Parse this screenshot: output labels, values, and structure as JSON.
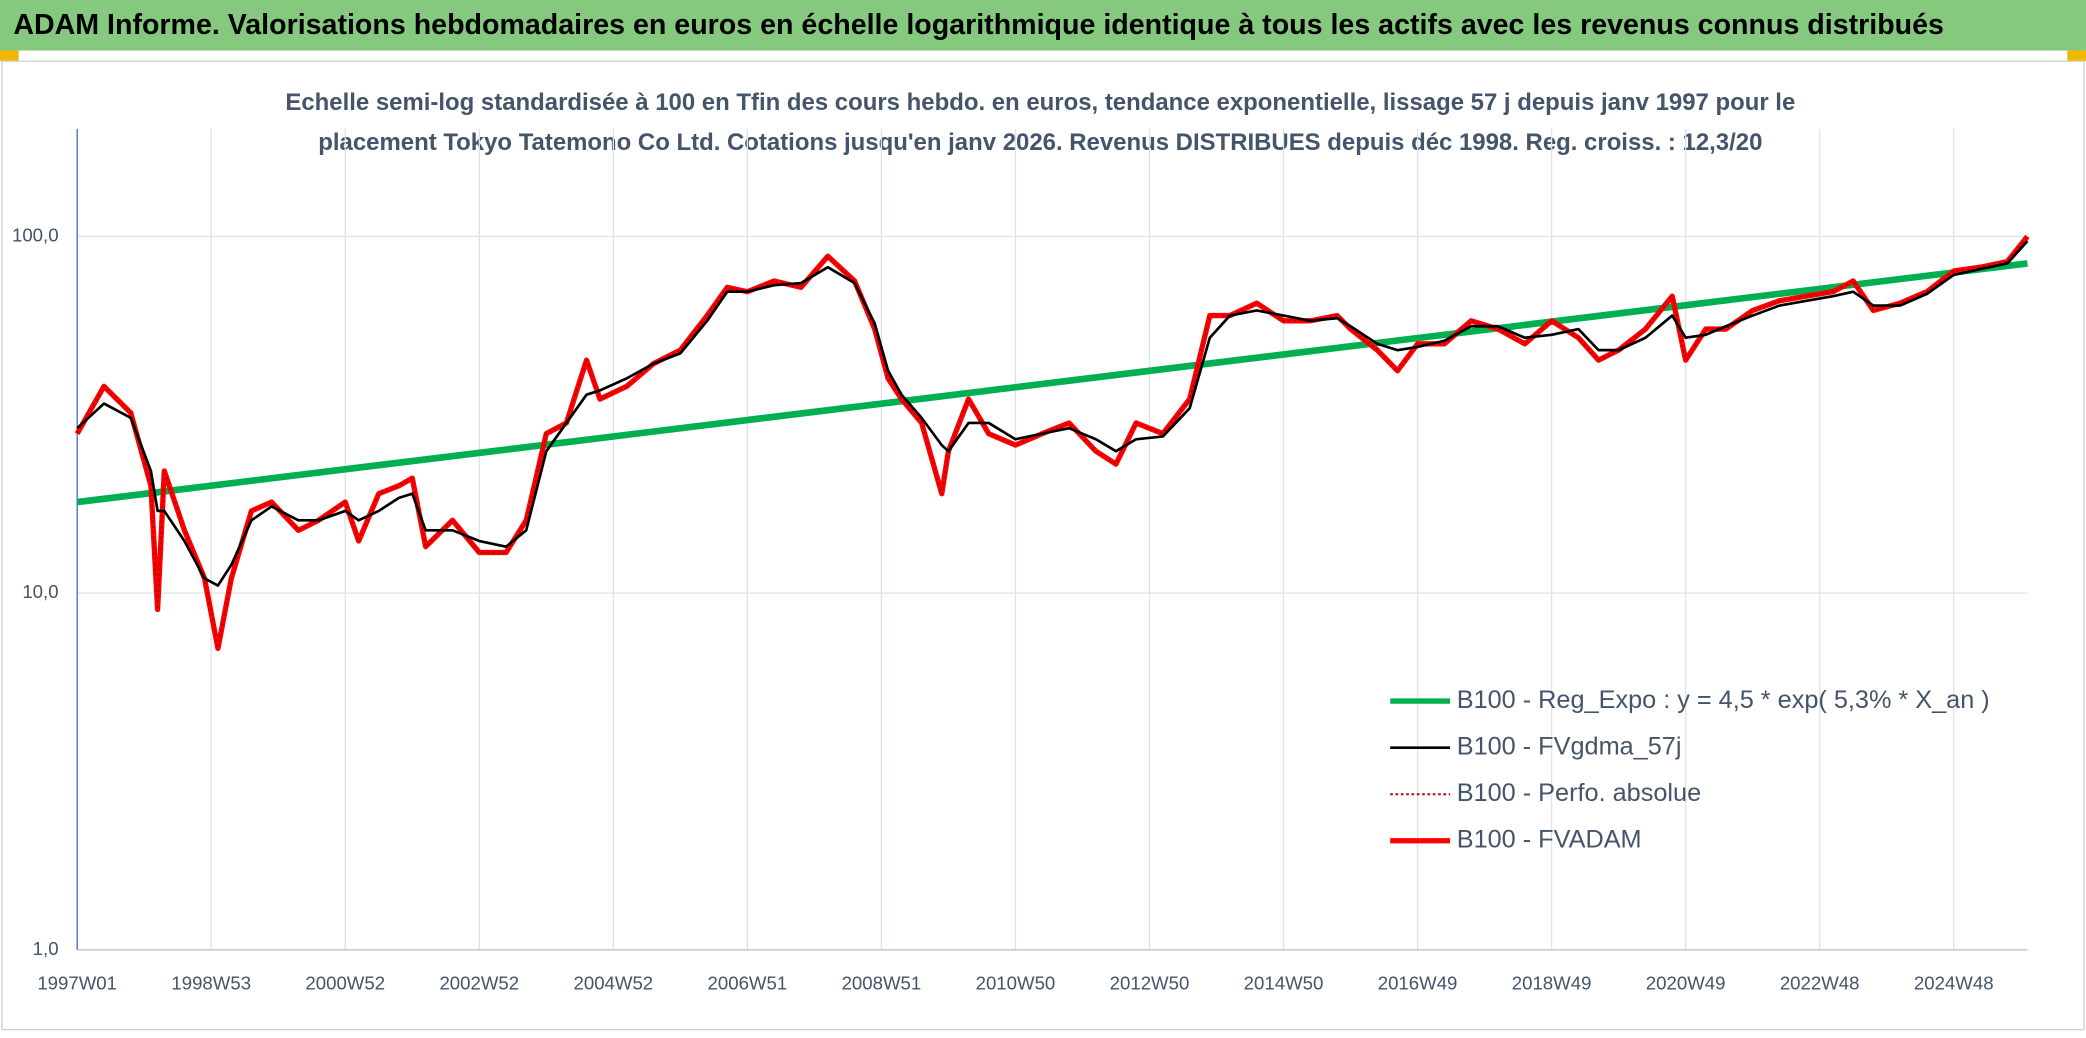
{
  "chart_data": {
    "type": "line",
    "title": "ADAM Informe. Valorisations hebdomadaires en euros en échelle logarithmique identique à tous les actifs avec les revenus connus distribués",
    "subtitle": [
      "Echelle semi-log standardisée à 100 en Tfin des cours hebdo. en euros, tendance exponentielle, lissage 57 j depuis janv 1997 pour le",
      "placement Tokyo Tatemono Co Ltd. Cotations jusqu'en janv 2026. Revenus DISTRIBUES depuis déc 1998. Reg. croiss. : 12,3/20"
    ],
    "log_y": true,
    "grid": true,
    "legend": "lower right",
    "xlim": [
      1997,
      2026.1
    ],
    "ylim": [
      1,
      200
    ],
    "xticks": [
      {
        "value": 1997,
        "label": "1997W01"
      },
      {
        "value": 1999,
        "label": "1998W53"
      },
      {
        "value": 2001,
        "label": "2000W52"
      },
      {
        "value": 2003,
        "label": "2002W52"
      },
      {
        "value": 2005,
        "label": "2004W52"
      },
      {
        "value": 2007,
        "label": "2006W51"
      },
      {
        "value": 2009,
        "label": "2008W51"
      },
      {
        "value": 2011,
        "label": "2010W50"
      },
      {
        "value": 2013,
        "label": "2012W50"
      },
      {
        "value": 2015,
        "label": "2014W50"
      },
      {
        "value": 2017,
        "label": "2016W49"
      },
      {
        "value": 2019,
        "label": "2018W49"
      },
      {
        "value": 2021,
        "label": "2020W49"
      },
      {
        "value": 2023,
        "label": "2022W48"
      },
      {
        "value": 2025,
        "label": "2024W48"
      }
    ],
    "yticks": [
      {
        "value": 1,
        "label": "1,0"
      },
      {
        "value": 10,
        "label": "10,0"
      },
      {
        "value": 100,
        "label": "100,0"
      }
    ],
    "x": [
      1997.0,
      1997.4,
      1997.8,
      1998.1,
      1998.2,
      1998.3,
      1998.6,
      1998.9,
      1999.1,
      1999.3,
      1999.6,
      1999.9,
      2000.3,
      2000.6,
      2001.0,
      2001.2,
      2001.5,
      2001.8,
      2002.0,
      2002.2,
      2002.6,
      2003.0,
      2003.4,
      2003.7,
      2004.0,
      2004.3,
      2004.6,
      2004.8,
      2005.2,
      2005.6,
      2006.0,
      2006.4,
      2006.7,
      2007.0,
      2007.4,
      2007.8,
      2008.2,
      2008.6,
      2008.9,
      2009.1,
      2009.3,
      2009.6,
      2009.9,
      2010.0,
      2010.3,
      2010.6,
      2011.0,
      2011.4,
      2011.8,
      2012.2,
      2012.5,
      2012.8,
      2013.2,
      2013.6,
      2013.9,
      2014.2,
      2014.6,
      2015.0,
      2015.4,
      2015.8,
      2016.0,
      2016.4,
      2016.7,
      2017.0,
      2017.4,
      2017.8,
      2018.2,
      2018.6,
      2019.0,
      2019.4,
      2019.7,
      2020.0,
      2020.4,
      2020.8,
      2021.0,
      2021.3,
      2021.6,
      2022.0,
      2022.4,
      2022.8,
      2023.2,
      2023.5,
      2023.8,
      2024.2,
      2024.6,
      2025.0,
      2025.4,
      2025.8,
      2026.1
    ],
    "series": [
      {
        "name": "B100 - Reg_Expo : y = 4,5 * exp( 5,3% *  X_an )",
        "color": "#00b050",
        "width": 5,
        "style": "solid",
        "x": [
          1997.0,
          2026.1
        ],
        "values": [
          18,
          84
        ]
      },
      {
        "name": "B100 - FVgdma_57j",
        "color": "#000000",
        "width": 2,
        "style": "solid",
        "values": [
          29,
          34,
          31,
          22,
          17,
          17,
          14,
          11,
          10.5,
          12,
          16,
          17.5,
          16,
          16,
          17,
          16,
          17,
          18.5,
          19,
          15,
          15,
          14,
          13.5,
          15,
          25,
          30,
          36,
          37,
          40,
          44,
          47,
          58,
          70,
          70,
          73,
          74,
          82,
          74,
          57,
          42,
          36,
          31,
          26,
          25,
          30,
          30,
          27,
          28,
          29,
          27,
          25,
          27,
          27.5,
          33,
          52,
          60,
          62,
          60,
          58,
          59,
          56,
          50,
          48,
          49,
          51,
          56,
          56,
          52,
          53,
          55,
          48,
          48,
          52,
          60,
          52,
          53,
          56,
          60,
          64,
          66,
          68,
          70,
          64,
          64,
          69,
          78,
          81,
          84,
          97
        ]
      },
      {
        "name": "B100 - Perfo. absolue",
        "color": "#c00000",
        "width": 1.5,
        "style": "dotted",
        "values": [
          28,
          38,
          32,
          20,
          9,
          22,
          15,
          11,
          7,
          11,
          17,
          18,
          15,
          16,
          18,
          14,
          19,
          20,
          21,
          13.5,
          16,
          13,
          13,
          16,
          28,
          30,
          45,
          35,
          38,
          44,
          48,
          60,
          72,
          70,
          75,
          72,
          88,
          75,
          55,
          40,
          35,
          30,
          19,
          25,
          35,
          28,
          26,
          28,
          30,
          25,
          23,
          30,
          28,
          35,
          60,
          60,
          65,
          58,
          58,
          60,
          55,
          48,
          42,
          50,
          50,
          58,
          55,
          50,
          58,
          52,
          45,
          48,
          55,
          68,
          45,
          55,
          55,
          62,
          66,
          68,
          70,
          75,
          62,
          65,
          70,
          80,
          82,
          85,
          100
        ]
      },
      {
        "name": "B100 - FVADAM",
        "color": "#ff0000",
        "width": 4,
        "style": "solid",
        "values": [
          28,
          38,
          32,
          20,
          9,
          22,
          15,
          11,
          7,
          11,
          17,
          18,
          15,
          16,
          18,
          14,
          19,
          20,
          21,
          13.5,
          16,
          13,
          13,
          16,
          28,
          30,
          45,
          35,
          38,
          44,
          48,
          60,
          72,
          70,
          75,
          72,
          88,
          75,
          55,
          40,
          35,
          30,
          19,
          25,
          35,
          28,
          26,
          28,
          30,
          25,
          23,
          30,
          28,
          35,
          60,
          60,
          65,
          58,
          58,
          60,
          55,
          48,
          42,
          50,
          50,
          58,
          55,
          50,
          58,
          52,
          45,
          48,
          55,
          68,
          45,
          55,
          55,
          62,
          66,
          68,
          70,
          75,
          62,
          65,
          70,
          80,
          82,
          85,
          100
        ]
      }
    ]
  }
}
